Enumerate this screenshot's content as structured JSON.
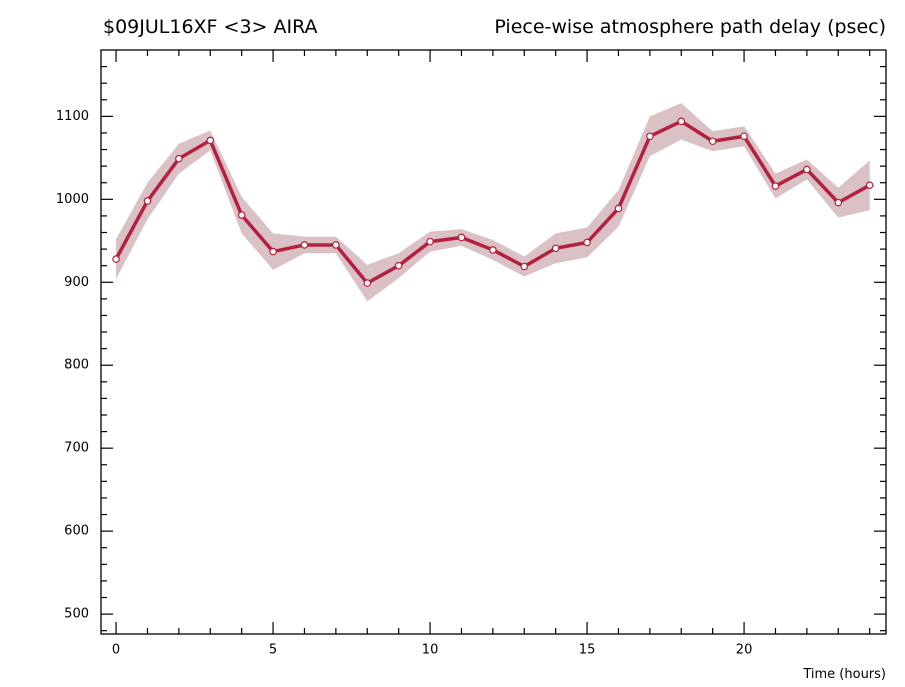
{
  "chart_data": {
    "type": "line",
    "title_left": "$09JUL16XF <3>  AIRA",
    "title": "Piece-wise atmosphere path delay (psec)",
    "xlabel": "Time (hours)",
    "x": [
      0,
      1,
      2,
      3,
      4,
      5,
      6,
      7,
      8,
      9,
      10,
      11,
      12,
      13,
      14,
      15,
      16,
      17,
      18,
      19,
      20,
      21,
      22,
      23,
      24
    ],
    "values": [
      928,
      998,
      1049,
      1071,
      981,
      937,
      945,
      945,
      899,
      920,
      949,
      954,
      939,
      919,
      941,
      948,
      989,
      1076,
      1094,
      1070,
      1076,
      1016,
      1036,
      996,
      1017
    ],
    "errors": [
      24,
      22,
      18,
      12,
      22,
      22,
      10,
      10,
      22,
      15,
      12,
      10,
      12,
      12,
      18,
      18,
      22,
      24,
      22,
      12,
      12,
      15,
      12,
      18,
      30
    ],
    "color": "#b4213f",
    "band_color": "#d9c1c5",
    "xlim": [
      -0.48,
      24.52
    ],
    "ylim": [
      476,
      1180
    ],
    "xticks": [
      0,
      5,
      10,
      15,
      20
    ],
    "yticks": [
      500,
      600,
      700,
      800,
      900,
      1000,
      1100
    ],
    "xminorticks": [
      1,
      2,
      3,
      4,
      6,
      7,
      8,
      9,
      11,
      12,
      13,
      14,
      16,
      17,
      18,
      19,
      21,
      22,
      23,
      24
    ],
    "yminorticks": [
      480,
      520,
      540,
      560,
      580,
      620,
      640,
      660,
      680,
      720,
      740,
      760,
      780,
      820,
      840,
      860,
      880,
      920,
      940,
      960,
      980,
      1020,
      1040,
      1060,
      1080,
      1120,
      1140,
      1160
    ]
  }
}
